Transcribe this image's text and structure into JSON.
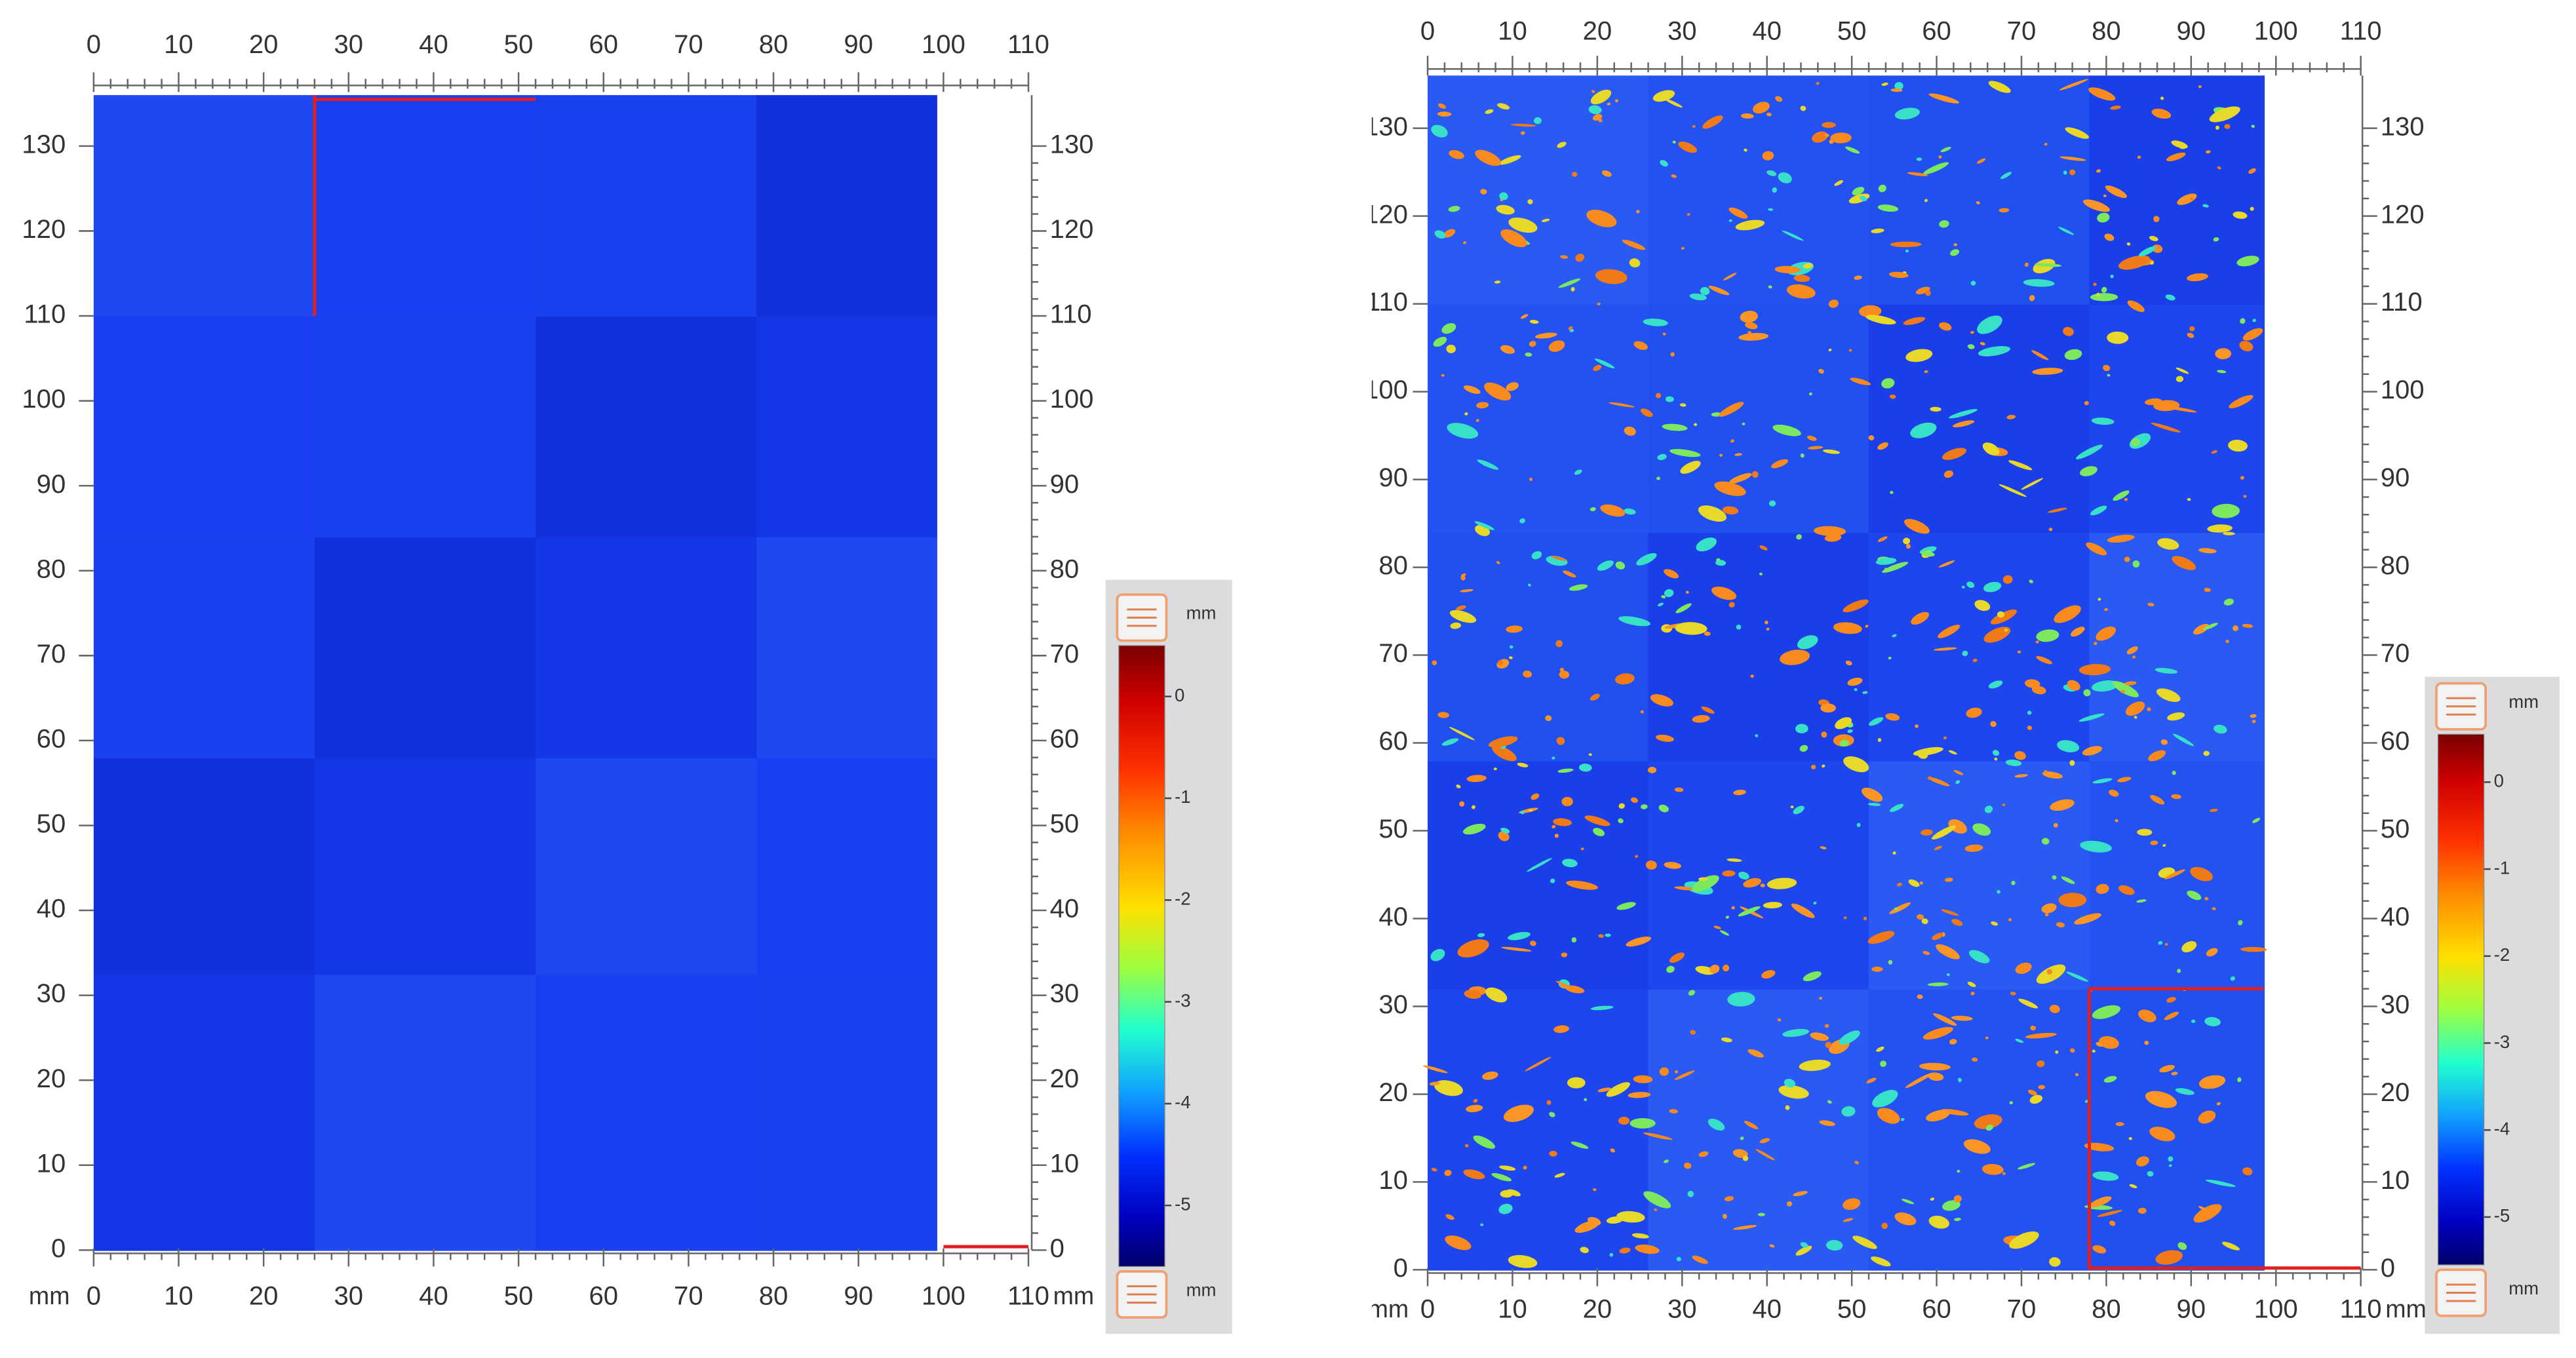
{
  "chart_data": [
    {
      "type": "heatmap",
      "unit": "mm",
      "xlim": [
        0,
        110
      ],
      "xticks": [
        0,
        10,
        20,
        30,
        40,
        50,
        60,
        70,
        80,
        90,
        100,
        110
      ],
      "ylim": [
        0,
        136
      ],
      "yticks": [
        0,
        10,
        20,
        30,
        40,
        50,
        60,
        70,
        80,
        90,
        100,
        110,
        120,
        130
      ],
      "colorbar": {
        "unit": "mm",
        "clim": [
          -5.6,
          0.5
        ],
        "ticks": [
          0,
          -1,
          -2,
          -3,
          -4,
          -5
        ]
      }
    },
    {
      "type": "heatmap",
      "unit": "mm",
      "xlim": [
        0,
        110
      ],
      "xticks": [
        0,
        10,
        20,
        30,
        40,
        50,
        60,
        70,
        80,
        90,
        100,
        110
      ],
      "ylim": [
        0,
        136
      ],
      "yticks": [
        0,
        10,
        20,
        30,
        40,
        50,
        60,
        70,
        80,
        90,
        100,
        110,
        120,
        130
      ],
      "colorbar": {
        "unit": "mm",
        "clim": [
          -5.55,
          0.55
        ],
        "ticks": [
          0,
          -1,
          -2,
          -3,
          -4,
          -5
        ]
      }
    }
  ]
}
